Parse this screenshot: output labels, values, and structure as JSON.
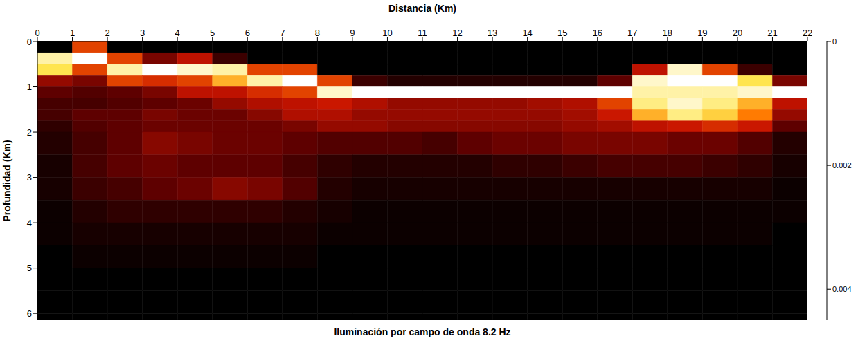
{
  "chart_data": {
    "type": "heatmap",
    "title": "Iluminación por campo de onda 8.2 Hz",
    "x_label": "Distancia (Km)",
    "y_label": "Profundidad (Km)",
    "x": [
      0,
      1,
      2,
      3,
      4,
      5,
      6,
      7,
      8,
      9,
      10,
      11,
      12,
      13,
      14,
      15,
      16,
      17,
      18,
      19,
      20,
      21,
      22
    ],
    "y": [
      0,
      0.25,
      0.5,
      0.75,
      1,
      1.25,
      1.5,
      1.75,
      2,
      2.5,
      3,
      3.5,
      4,
      4.5,
      5,
      5.5,
      6,
      6.15
    ],
    "xlim": [
      0,
      22
    ],
    "xticks": [
      0,
      1,
      2,
      3,
      4,
      5,
      6,
      7,
      8,
      9,
      10,
      11,
      12,
      13,
      14,
      15,
      16,
      17,
      18,
      19,
      20,
      21,
      22
    ],
    "ylim": [
      0,
      6.15
    ],
    "yticks": [
      0,
      1,
      2,
      3,
      4,
      5,
      6
    ],
    "cells": [
      [
        0,
        0.002,
        0,
        0,
        0,
        0,
        0,
        0,
        0,
        0,
        0,
        0,
        0,
        0,
        0,
        0,
        0,
        0,
        0,
        0,
        0,
        0
      ],
      [
        0.004,
        0.0045,
        0.002,
        0.001,
        0.0015,
        0.0005,
        0,
        0,
        0,
        0,
        0,
        0,
        0,
        0,
        0,
        0,
        0,
        0,
        0,
        0,
        0,
        0
      ],
      [
        0.0035,
        0.002,
        0.004,
        0.0045,
        0.0042,
        0.004,
        0.002,
        0.002,
        0,
        0,
        0,
        0,
        0,
        0,
        0,
        0,
        0,
        0.0015,
        0.0042,
        0.002,
        0.0005,
        0
      ],
      [
        0.0012,
        0.001,
        0.002,
        0.0018,
        0.002,
        0.003,
        0.004,
        0.0045,
        0.002,
        0.0005,
        0.0003,
        0.0003,
        0.0003,
        0.0003,
        0.0003,
        0.0003,
        0.0008,
        0.0042,
        0.0045,
        0.0045,
        0.0035,
        0.001
      ],
      [
        0.0008,
        0.0007,
        0.0008,
        0.001,
        0.0015,
        0.0015,
        0.0018,
        0.002,
        0.0042,
        0.0045,
        0.0045,
        0.0045,
        0.0045,
        0.0045,
        0.0045,
        0.0045,
        0.0045,
        0.004,
        0.004,
        0.004,
        0.0042,
        0.0045
      ],
      [
        0.0006,
        0.0006,
        0.0007,
        0.0008,
        0.0009,
        0.0012,
        0.0014,
        0.0015,
        0.0016,
        0.0014,
        0.0012,
        0.0012,
        0.0012,
        0.0012,
        0.0013,
        0.0014,
        0.002,
        0.0038,
        0.0042,
        0.0038,
        0.003,
        0.0015
      ],
      [
        0.0006,
        0.0008,
        0.0008,
        0.001,
        0.0009,
        0.0009,
        0.0011,
        0.0014,
        0.0014,
        0.0012,
        0.0012,
        0.0012,
        0.0012,
        0.0012,
        0.0012,
        0.0013,
        0.0016,
        0.003,
        0.0038,
        0.0033,
        0.0025,
        0.0012
      ],
      [
        0.0004,
        0.0007,
        0.0008,
        0.0009,
        0.0009,
        0.0009,
        0.0009,
        0.001,
        0.0012,
        0.0012,
        0.0011,
        0.0011,
        0.0011,
        0.0011,
        0.0011,
        0.0012,
        0.0013,
        0.0015,
        0.0016,
        0.0018,
        0.0016,
        0.0008
      ],
      [
        0.0003,
        0.0006,
        0.0008,
        0.0011,
        0.001,
        0.0009,
        0.0009,
        0.0008,
        0.0007,
        0.0007,
        0.0007,
        0.0006,
        0.0008,
        0.0009,
        0.0009,
        0.001,
        0.001,
        0.001,
        0.0009,
        0.0009,
        0.0007,
        0.0003
      ],
      [
        0.0002,
        0.0006,
        0.0008,
        0.0009,
        0.0008,
        0.0008,
        0.0008,
        0.0006,
        0.0004,
        0.0003,
        0.0003,
        0.0003,
        0.0003,
        0.0004,
        0.0004,
        0.0005,
        0.0006,
        0.0006,
        0.0006,
        0.0005,
        0.0004,
        0.0002
      ],
      [
        0.0002,
        0.0005,
        0.0006,
        0.0008,
        0.0009,
        0.0011,
        0.001,
        0.0007,
        0.0003,
        0.0002,
        0.0002,
        0.0002,
        0.0002,
        0.0002,
        0.0002,
        0.0002,
        0.0002,
        0.0002,
        0.0002,
        0.0002,
        0.0002,
        0.0001
      ],
      [
        0.0001,
        0.0003,
        0.0004,
        0.0004,
        0.0004,
        0.0004,
        0.0004,
        0.0003,
        0.0002,
        0.0001,
        0.0001,
        0.0001,
        0.0001,
        0.0001,
        0.0001,
        0.0001,
        0.0001,
        0.0001,
        0.0001,
        0.0001,
        0.0001,
        0.0001
      ],
      [
        0.0001,
        0.0002,
        0.0002,
        0.0002,
        0.0002,
        0.0002,
        0.0002,
        0.0002,
        0.0001,
        0.0001,
        0.0001,
        0.0001,
        0.0001,
        0.0001,
        0.0001,
        0.0001,
        0.0001,
        0.0001,
        0.0001,
        0.0001,
        0.0001,
        0
      ],
      [
        0,
        0.0001,
        0.0001,
        0.0001,
        0.0001,
        0.0001,
        0.0001,
        0.0001,
        0,
        0,
        0,
        0,
        0,
        0,
        0,
        0,
        0,
        0,
        0,
        0,
        0,
        0
      ],
      [
        0,
        0,
        0,
        0,
        0,
        0,
        0,
        0,
        0,
        0,
        0,
        0,
        0,
        0,
        0,
        0,
        0,
        0,
        0,
        0,
        0,
        0
      ],
      [
        0,
        0,
        0,
        0,
        0,
        0,
        0,
        0,
        0,
        0,
        0,
        0,
        0,
        0,
        0,
        0,
        0,
        0,
        0,
        0,
        0,
        0
      ],
      [
        0,
        0,
        0,
        0,
        0,
        0,
        0,
        0,
        0,
        0,
        0,
        0,
        0,
        0,
        0,
        0,
        0,
        0,
        0,
        0,
        0,
        0
      ]
    ],
    "colorbar": {
      "range": [
        0,
        0.0045
      ],
      "ticks": [
        0,
        0.002,
        0.004
      ]
    }
  }
}
